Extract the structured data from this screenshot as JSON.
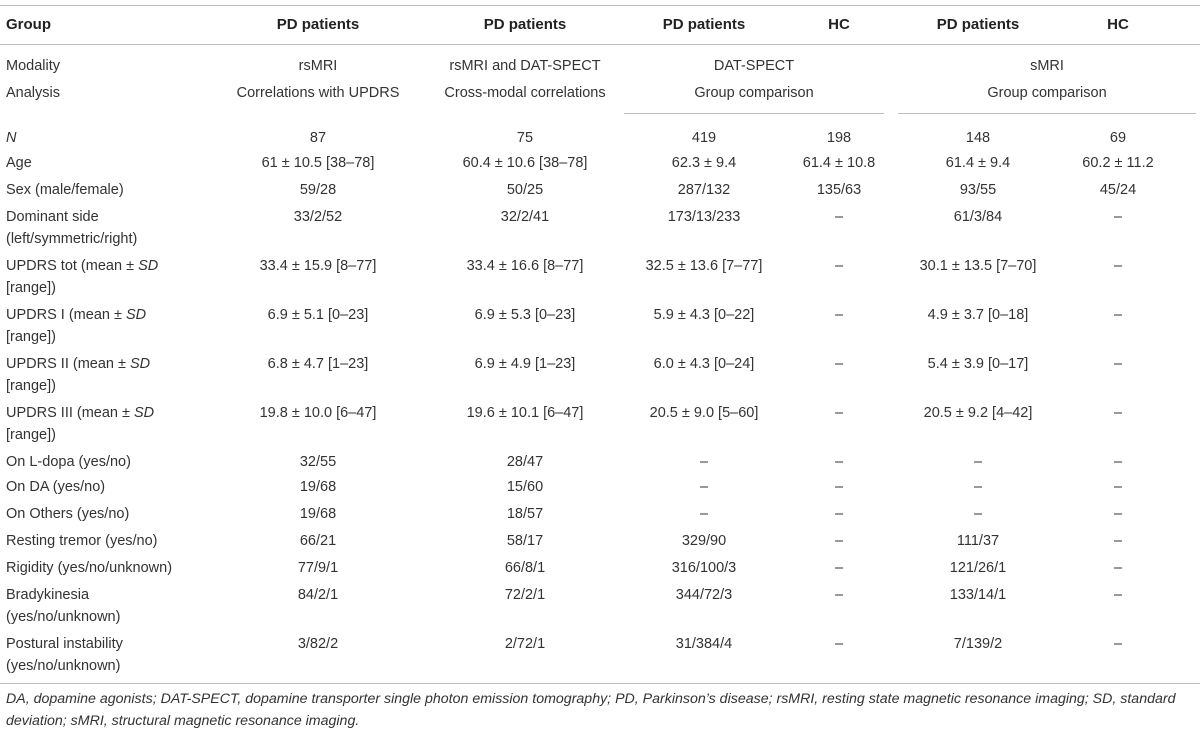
{
  "header": {
    "group": "Group",
    "cols": [
      "PD patients",
      "PD patients",
      "PD patients",
      "HC",
      "PD patients",
      "HC"
    ]
  },
  "modality_row": {
    "label": "Modality",
    "c1": "rsMRI",
    "c2": "rsMRI and DAT-SPECT",
    "c3": "DAT-SPECT",
    "c4": "sMRI"
  },
  "analysis_row": {
    "label": "Analysis",
    "c1": "Correlations with UPDRS",
    "c2": "Cross-modal correlations",
    "c3": "Group comparison",
    "c4": "Group comparison"
  },
  "rows": [
    {
      "label": [
        "N"
      ],
      "italic": true,
      "cells": [
        "87",
        "75",
        "419",
        "198",
        "148",
        "69"
      ]
    },
    {
      "label": [
        "Age"
      ],
      "cells": [
        "61 ± 10.5 [38–78]",
        "60.4 ± 10.6 [38–78]",
        "62.3 ± 9.4",
        "61.4 ± 10.8",
        "61.4 ± 9.4",
        "60.2 ± 11.2"
      ]
    },
    {
      "label": [
        "Sex (male/female)"
      ],
      "cells": [
        "59/28",
        "50/25",
        "287/132",
        "135/63",
        "93/55",
        "45/24"
      ]
    },
    {
      "label": [
        "Dominant side",
        "(left/symmetric/right)"
      ],
      "cells": [
        "33/2/52",
        "32/2/41",
        "173/13/233",
        "–",
        "61/3/84",
        "–"
      ]
    },
    {
      "label": [
        "UPDRS tot (mean ± SD",
        "[range])"
      ],
      "cells": [
        "33.4 ± 15.9 [8–77]",
        "33.4 ± 16.6 [8–77]",
        "32.5 ± 13.6 [7–77]",
        "–",
        "30.1 ± 13.5 [7–70]",
        "–"
      ]
    },
    {
      "label": [
        "UPDRS I (mean ± SD",
        "[range])"
      ],
      "cells": [
        "6.9 ± 5.1 [0–23]",
        "6.9 ± 5.3 [0–23]",
        "5.9 ± 4.3 [0–22]",
        "–",
        "4.9 ± 3.7 [0–18]",
        "–"
      ]
    },
    {
      "label": [
        "UPDRS II (mean ± SD",
        "[range])"
      ],
      "cells": [
        "6.8 ± 4.7 [1–23]",
        "6.9 ± 4.9 [1–23]",
        "6.0 ± 4.3 [0–24]",
        "–",
        "5.4 ± 3.9 [0–17]",
        "–"
      ]
    },
    {
      "label": [
        "UPDRS III (mean ± SD",
        "[range])"
      ],
      "cells": [
        "19.8 ± 10.0 [6–47]",
        "19.6 ± 10.1 [6–47]",
        "20.5 ± 9.0 [5–60]",
        "–",
        "20.5 ± 9.2 [4–42]",
        "–"
      ]
    },
    {
      "label": [
        "On L-dopa (yes/no)"
      ],
      "cells": [
        "32/55",
        "28/47",
        "–",
        "–",
        "–",
        "–"
      ]
    },
    {
      "label": [
        "On DA (yes/no)"
      ],
      "cells": [
        "19/68",
        "15/60",
        "–",
        "–",
        "–",
        "–"
      ]
    },
    {
      "label": [
        "On Others (yes/no)"
      ],
      "cells": [
        "19/68",
        "18/57",
        "–",
        "–",
        "–",
        "–"
      ]
    },
    {
      "label": [
        "Resting tremor (yes/no)"
      ],
      "cells": [
        "66/21",
        "58/17",
        "329/90",
        "–",
        "111/37",
        "–"
      ]
    },
    {
      "label": [
        "Rigidity (yes/no/unknown)"
      ],
      "cells": [
        "77/9/1",
        "66/8/1",
        "316/100/3",
        "–",
        "121/26/1",
        "–"
      ]
    },
    {
      "label": [
        "Bradykinesia",
        "(yes/no/unknown)"
      ],
      "cells": [
        "84/2/1",
        "72/2/1",
        "344/72/3",
        "–",
        "133/14/1",
        "–"
      ]
    },
    {
      "label": [
        "Postural instability",
        "(yes/no/unknown)"
      ],
      "cells": [
        "3/82/2",
        "2/72/1",
        "31/384/4",
        "–",
        "7/139/2",
        "–"
      ]
    }
  ],
  "footnote": "DA, dopamine agonists; DAT-SPECT, dopamine transporter single photon emission tomography; PD, Parkinson’s disease; rsMRI, resting state magnetic resonance imaging; SD, standard deviation; sMRI, structural magnetic resonance imaging."
}
